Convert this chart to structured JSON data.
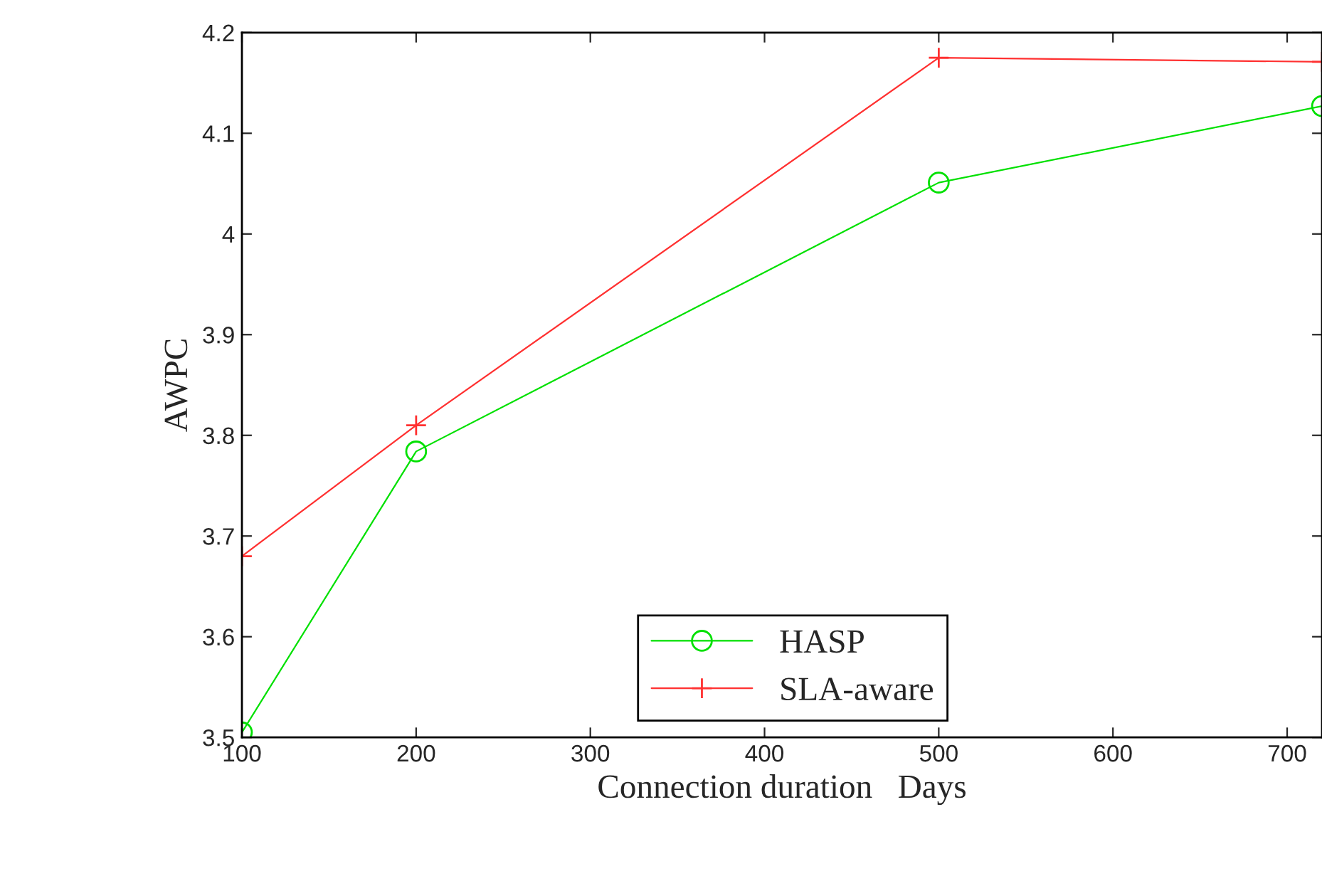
{
  "chart_data": {
    "type": "line",
    "xlabel": "Connection duration   Days",
    "ylabel": "AWPC",
    "x": [
      100,
      200,
      500,
      720
    ],
    "series": [
      {
        "name": "HASP",
        "color": "#00e000",
        "marker": "circle",
        "values": [
          3.505,
          3.784,
          4.051,
          4.127
        ]
      },
      {
        "name": "SLA-aware",
        "color": "#ff3030",
        "marker": "cross",
        "values": [
          3.68,
          3.81,
          4.175,
          4.171
        ]
      }
    ],
    "xlim": [
      100,
      720
    ],
    "xticks": [
      100,
      200,
      300,
      400,
      500,
      600,
      700
    ],
    "ylim": [
      3.5,
      4.2
    ],
    "yticks": [
      3.5,
      3.6,
      3.7,
      3.8,
      3.9,
      4,
      4.1,
      4.2
    ],
    "grid": false,
    "legend": "bottom",
    "line_style": "solid"
  }
}
